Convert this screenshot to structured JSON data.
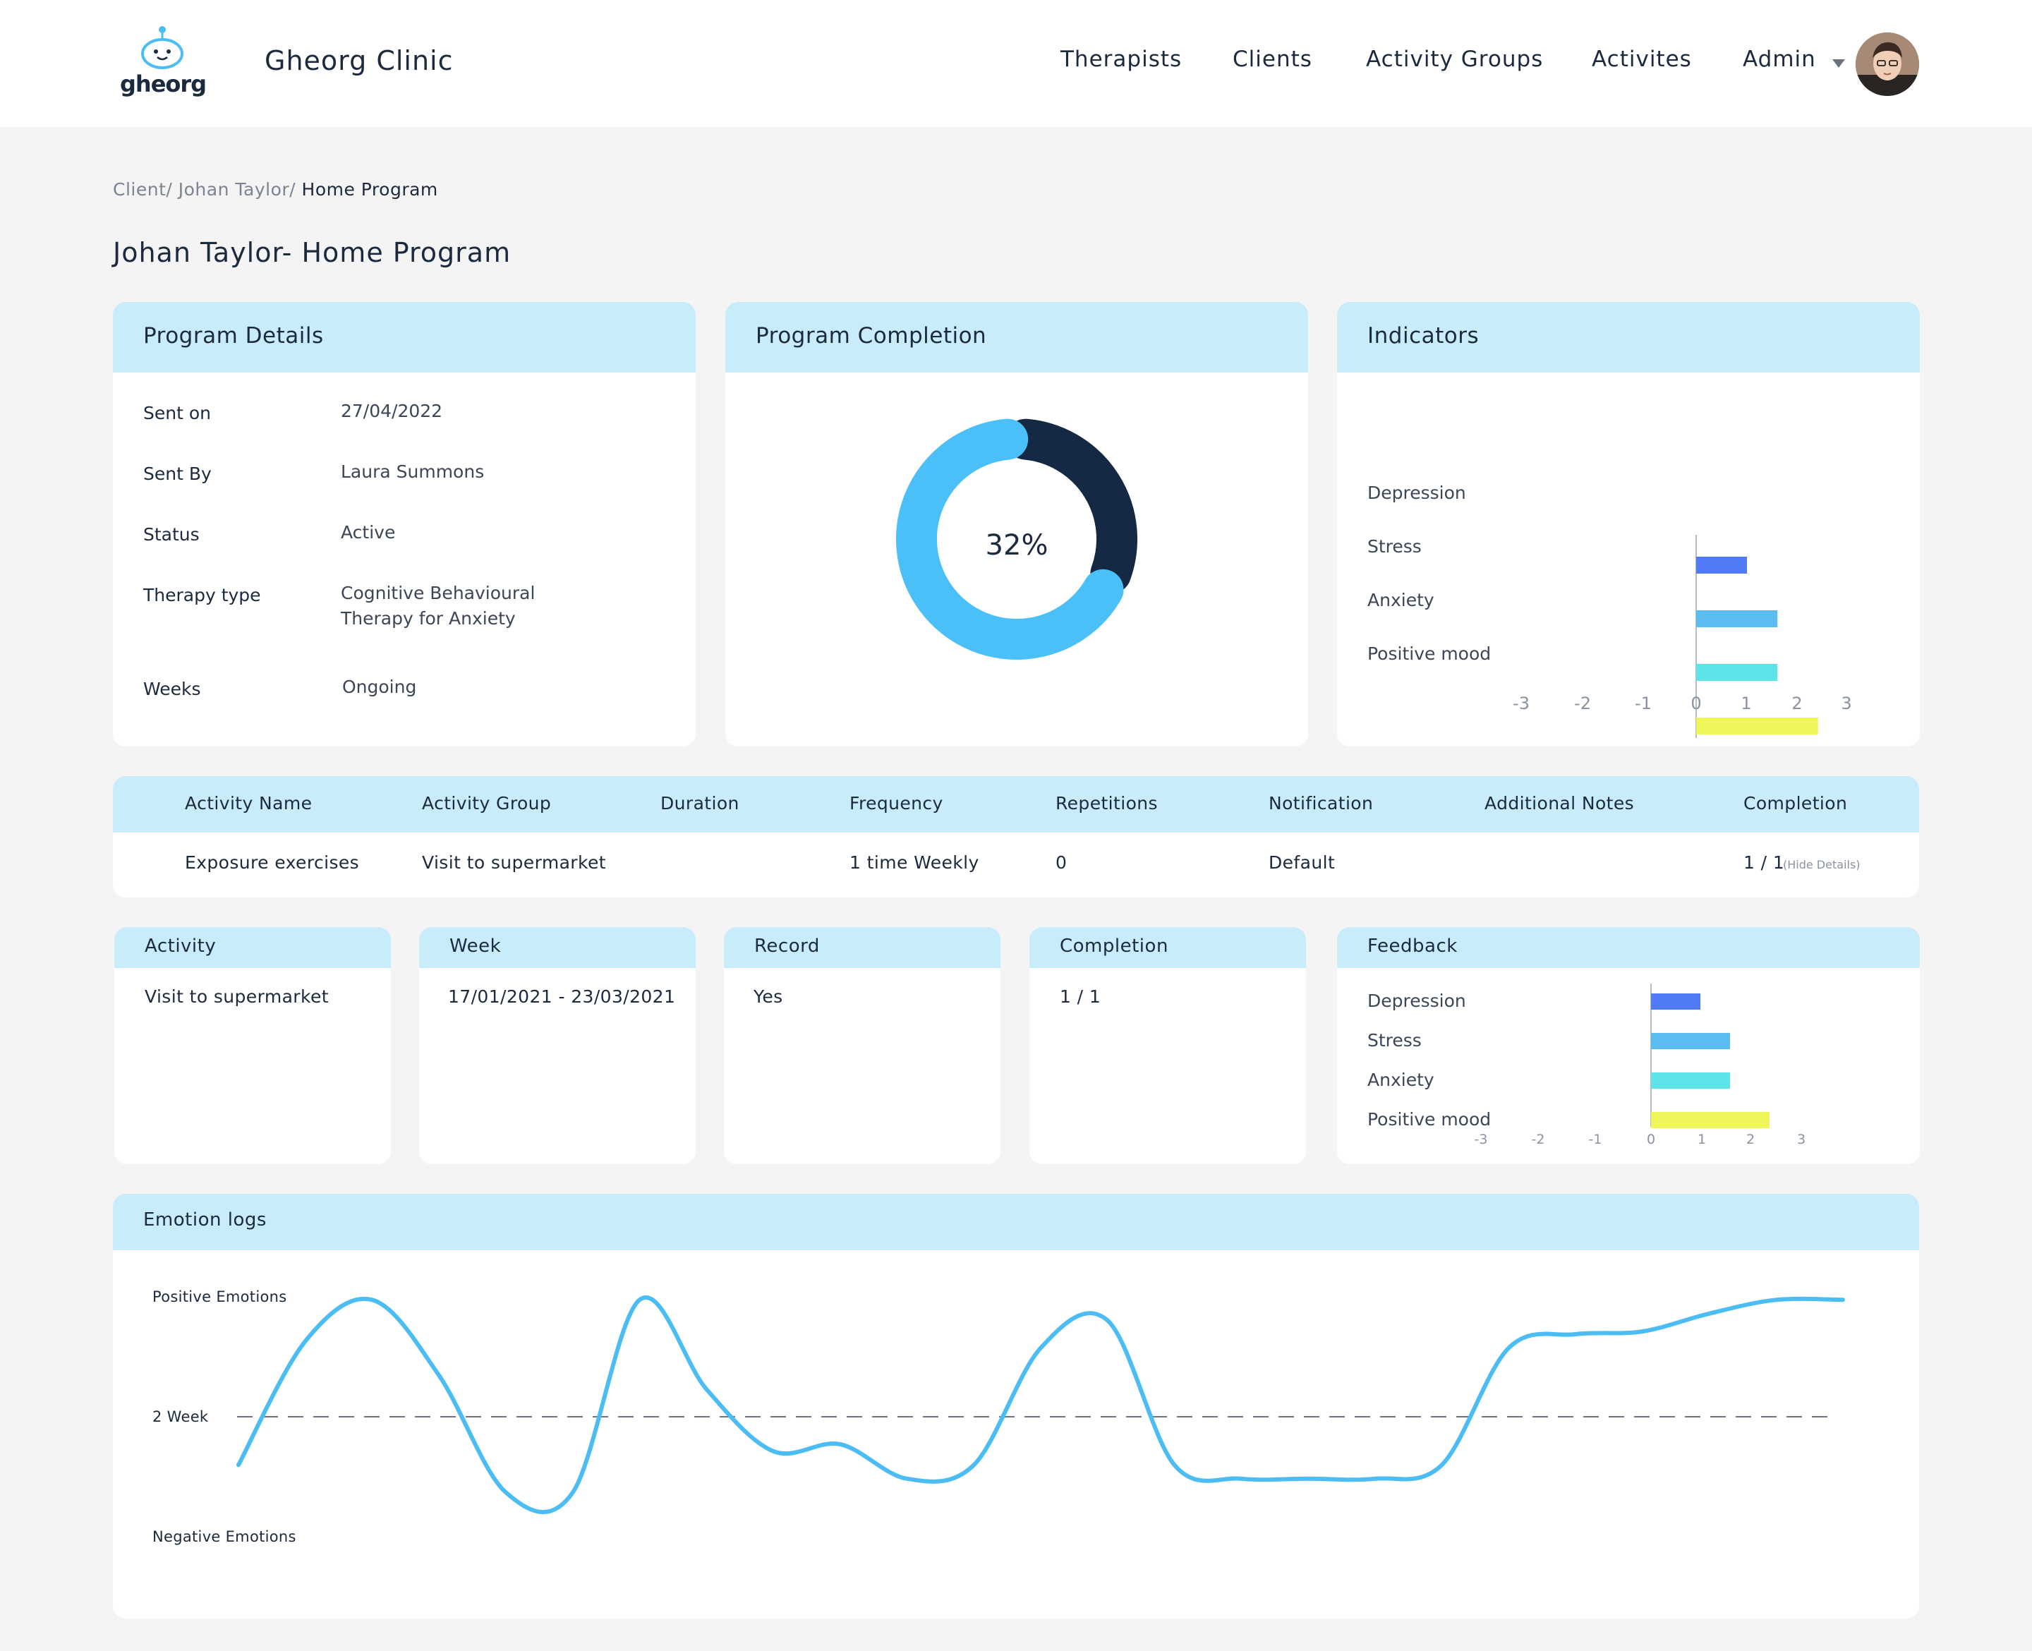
{
  "header": {
    "logo_text": "gheorg",
    "clinic_name": "Gheorg Clinic",
    "nav": [
      "Therapists",
      "Clients",
      "Activity Groups",
      "Activites"
    ],
    "user_label": "Admin"
  },
  "breadcrumb": {
    "part1": "Client/",
    "part2": " Johan Taylor/",
    "current": " Home Program"
  },
  "page_title": "Johan Taylor- Home Program",
  "program_details": {
    "title": "Program Details",
    "rows": [
      {
        "label": "Sent on",
        "value": "27/04/2022"
      },
      {
        "label": "Sent By",
        "value": "Laura Summons"
      },
      {
        "label": "Status",
        "value": "Active"
      },
      {
        "label": "Therapy type",
        "value_line1": "Cognitive Behavioural",
        "value_line2": "Therapy for Anxiety"
      },
      {
        "label": "Weeks",
        "value": "Ongoing"
      }
    ]
  },
  "program_completion": {
    "title": "Program Completion",
    "percent_label": "32%",
    "percent": 32
  },
  "indicators": {
    "title": "Indicators",
    "chart_data": {
      "type": "bar",
      "orientation": "horizontal",
      "categories": [
        "Depression",
        "Stress",
        "Anxiety",
        "Positive mood"
      ],
      "values": [
        1.0,
        1.6,
        1.6,
        2.4
      ],
      "colors": [
        "#4f7bf7",
        "#5bbcf1",
        "#5ee3e8",
        "#eef65a"
      ],
      "xlim": [
        -3,
        3
      ],
      "xticks": [
        "-3",
        "-2",
        "-1",
        "0",
        "1",
        "2",
        "3"
      ]
    }
  },
  "activity_table": {
    "headers": [
      "Activity Name",
      "Activity Group",
      "Duration",
      "Frequency",
      "Repetitions",
      "Notification",
      "Additional Notes",
      "Completion"
    ],
    "row": {
      "activity_name": "Exposure exercises",
      "activity_group": "Visit to supermarket",
      "duration": "",
      "frequency": "1 time Weekly",
      "repetitions": "0",
      "notification": "Default",
      "additional_notes": "",
      "completion": "1 / 1",
      "hide_details": "(Hide Details)"
    }
  },
  "detail_cards": {
    "activity": {
      "title": "Activity",
      "value": "Visit to supermarket"
    },
    "week": {
      "title": "Week",
      "value": "17/01/2021 - 23/03/2021"
    },
    "record": {
      "title": "Record",
      "value": "Yes"
    },
    "completion": {
      "title": "Completion",
      "value": "1 / 1"
    }
  },
  "feedback": {
    "title": "Feedback",
    "chart_data": {
      "type": "bar",
      "orientation": "horizontal",
      "categories": [
        "Depression",
        "Stress",
        "Anxiety",
        "Positive mood"
      ],
      "values": [
        1.0,
        1.6,
        1.6,
        2.4
      ],
      "colors": [
        "#4f7bf7",
        "#5bbcf1",
        "#5ee3e8",
        "#eef65a"
      ],
      "xlim": [
        -3,
        3
      ],
      "xticks": [
        "-3",
        "-2",
        "-1",
        "0",
        "1",
        "2",
        "3"
      ]
    }
  },
  "emotion_logs": {
    "title": "Emotion logs",
    "chart_data": {
      "type": "line",
      "ylabel_top": "Positive Emotions",
      "ylabel_mid": "2 Week",
      "ylabel_bottom": "Negative Emotions",
      "ylim": [
        -1,
        1
      ],
      "x": [
        0,
        1,
        2,
        3,
        4,
        5,
        6,
        7,
        8,
        9,
        10,
        11,
        12,
        13,
        14,
        15,
        16,
        17,
        18,
        19,
        20,
        21,
        22,
        23,
        24
      ],
      "values": [
        -0.35,
        0.55,
        0.85,
        0.3,
        -0.55,
        -0.55,
        0.85,
        0.2,
        -0.25,
        -0.2,
        -0.45,
        -0.35,
        0.5,
        0.7,
        -0.35,
        -0.45,
        -0.45,
        -0.45,
        -0.35,
        0.5,
        0.6,
        0.62,
        0.75,
        0.85,
        0.85
      ],
      "color": "#4bbdf3"
    }
  }
}
